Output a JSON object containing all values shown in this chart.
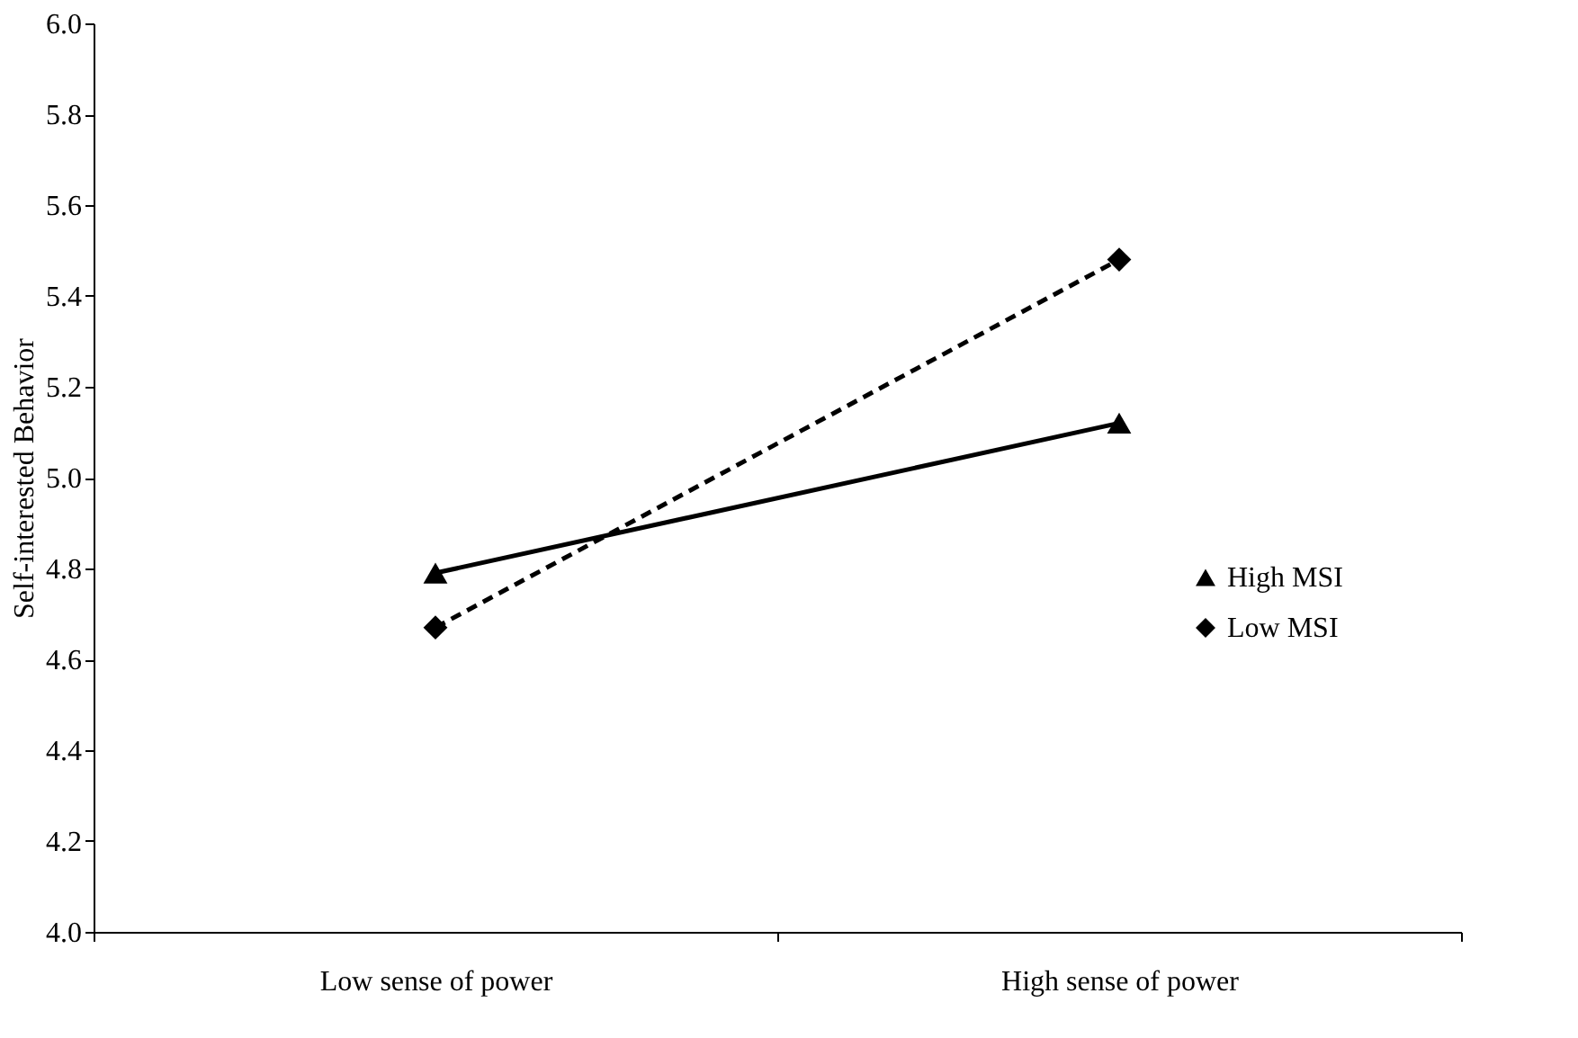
{
  "chart_data": {
    "type": "line",
    "ylabel": "Self-interested Behavior",
    "categories": [
      "Low sense of power",
      "High sense of power"
    ],
    "series": [
      {
        "name": "High MSI",
        "color": "#000000",
        "values": [
          4.79,
          5.12
        ],
        "marker": "triangle",
        "line_style": "solid"
      },
      {
        "name": "Low MSI",
        "color": "#000000",
        "values": [
          4.67,
          5.48
        ],
        "marker": "diamond",
        "line_style": "dashed"
      }
    ],
    "ylim": [
      4.0,
      6.0
    ],
    "yticks": [
      {
        "value": 4,
        "label": "4.0"
      },
      4.2,
      4.4,
      4.6,
      4.8,
      {
        "value": 5,
        "label": "5.0"
      },
      5.2,
      5.4,
      5.6,
      5.8,
      {
        "value": 6,
        "label": "6.0"
      }
    ],
    "grid": false,
    "legend": "right"
  }
}
